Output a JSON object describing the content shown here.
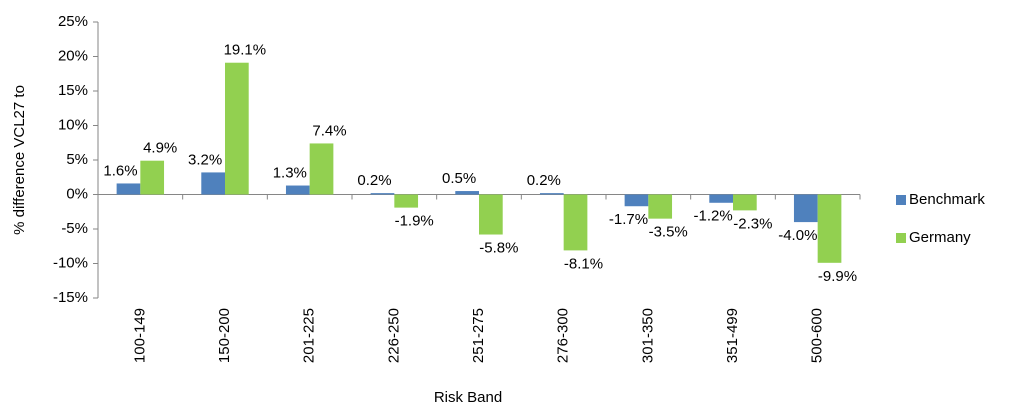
{
  "chart_data": {
    "type": "bar",
    "x_label": "Risk Band",
    "y_label": "% difference VCL27 to",
    "categories": [
      "100-149",
      "150-200",
      "201-225",
      "226-250",
      "251-275",
      "276-300",
      "301-350",
      "351-499",
      "500-600"
    ],
    "series": [
      {
        "name": "Benchmark",
        "color": "#4f81bd",
        "values": [
          1.6,
          3.2,
          1.3,
          0.2,
          0.5,
          0.2,
          -1.7,
          -1.2,
          -4.0
        ],
        "value_labels": [
          "1.6%",
          "3.2%",
          "1.3%",
          "0.2%",
          "0.5%",
          "0.2%",
          "-1.7%",
          "-1.2%",
          "-4.0%"
        ]
      },
      {
        "name": "Germany",
        "color": "#92d050",
        "values": [
          4.9,
          19.1,
          7.4,
          -1.9,
          -5.8,
          -8.1,
          -3.5,
          -2.3,
          -9.9
        ],
        "value_labels": [
          "4.9%",
          "19.1%",
          "7.4%",
          "-1.9%",
          "-5.8%",
          "-8.1%",
          "-3.5%",
          "-2.3%",
          "-9.9%"
        ]
      }
    ],
    "ylim": [
      -15,
      25
    ],
    "yticks": [
      {
        "value": -15,
        "label": "-15%"
      },
      {
        "value": -10,
        "label": "-10%"
      },
      {
        "value": -5,
        "label": "-5%"
      },
      {
        "value": 0,
        "label": "0%"
      },
      {
        "value": 5,
        "label": "5%"
      },
      {
        "value": 10,
        "label": "10%"
      },
      {
        "value": 15,
        "label": "15%"
      },
      {
        "value": 20,
        "label": "20%"
      },
      {
        "value": 25,
        "label": "25%"
      }
    ],
    "grid": false,
    "legend_position": "right"
  }
}
